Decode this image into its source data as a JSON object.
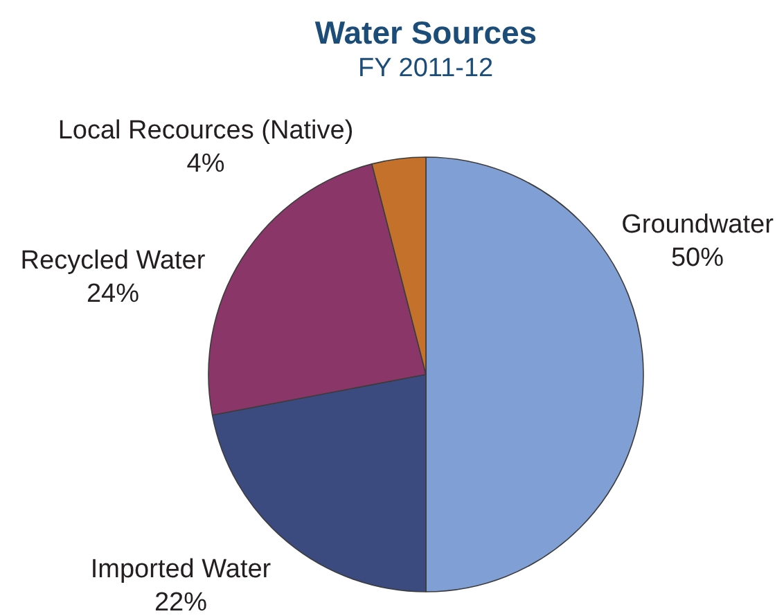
{
  "chart_data": {
    "type": "pie",
    "title": "Water Sources",
    "subtitle": "FY 2011-12",
    "categories": [
      "Groundwater",
      "Imported Water",
      "Recycled Water",
      "Local Recources (Native)"
    ],
    "values": [
      50,
      22,
      24,
      4
    ],
    "colors": [
      "#809fd4",
      "#3b4a7f",
      "#8b3668",
      "#c4722b"
    ],
    "value_labels": [
      "50%",
      "22%",
      "24%",
      "4%"
    ]
  }
}
